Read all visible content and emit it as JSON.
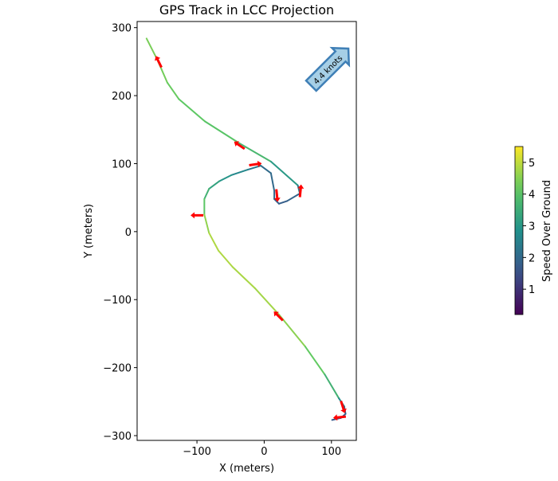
{
  "chart_data": {
    "type": "line",
    "title": "GPS Track in LCC Projection",
    "xlabel": "X (meters)",
    "ylabel": "Y (meters)",
    "xlim": [
      -189,
      137
    ],
    "ylim": [
      -307,
      309
    ],
    "xticks": [
      -100,
      0,
      100
    ],
    "xtick_labels": [
      "−100",
      "0",
      "100"
    ],
    "yticks": [
      -300,
      -200,
      -100,
      0,
      100,
      200,
      300
    ],
    "ytick_labels": [
      "−300",
      "−200",
      "−100",
      "0",
      "100",
      "200",
      "300"
    ],
    "grid": false,
    "track": [
      {
        "x": -175,
        "y": 284,
        "s": 4.4
      },
      {
        "x": -159,
        "y": 253,
        "s": 4.4
      },
      {
        "x": -144,
        "y": 219,
        "s": 4.3
      },
      {
        "x": -127,
        "y": 195,
        "s": 4.2
      },
      {
        "x": -88,
        "y": 162,
        "s": 4.1
      },
      {
        "x": -37,
        "y": 130,
        "s": 4.0
      },
      {
        "x": 10,
        "y": 103,
        "s": 3.5
      },
      {
        "x": 50,
        "y": 68,
        "s": 2.6
      },
      {
        "x": 53,
        "y": 56,
        "s": 2.0
      },
      {
        "x": 34,
        "y": 45,
        "s": 1.8
      },
      {
        "x": 22,
        "y": 41,
        "s": 1.8
      },
      {
        "x": 15,
        "y": 48,
        "s": 1.9
      },
      {
        "x": 15,
        "y": 60,
        "s": 2.0
      },
      {
        "x": 10,
        "y": 86,
        "s": 2.0
      },
      {
        "x": -5,
        "y": 97,
        "s": 2.1
      },
      {
        "x": -25,
        "y": 91,
        "s": 2.5
      },
      {
        "x": -49,
        "y": 83,
        "s": 2.8
      },
      {
        "x": -67,
        "y": 74,
        "s": 3.1
      },
      {
        "x": -82,
        "y": 63,
        "s": 3.4
      },
      {
        "x": -89,
        "y": 48,
        "s": 3.8
      },
      {
        "x": -89,
        "y": 25,
        "s": 4.4
      },
      {
        "x": -82,
        "y": -2,
        "s": 4.8
      },
      {
        "x": -68,
        "y": -28,
        "s": 4.9
      },
      {
        "x": -47,
        "y": -52,
        "s": 4.8
      },
      {
        "x": -14,
        "y": -83,
        "s": 4.8
      },
      {
        "x": 22,
        "y": -122,
        "s": 4.7
      },
      {
        "x": 61,
        "y": -169,
        "s": 4.4
      },
      {
        "x": 90,
        "y": -210,
        "s": 4.0
      },
      {
        "x": 111,
        "y": -245,
        "s": 3.2
      },
      {
        "x": 119,
        "y": -257,
        "s": 2.2
      },
      {
        "x": 121,
        "y": -268,
        "s": 1.8
      },
      {
        "x": 114,
        "y": -274,
        "s": 1.7
      },
      {
        "x": 101,
        "y": -277,
        "s": 1.7
      }
    ],
    "heading_arrows": [
      {
        "x": -157,
        "y": 250,
        "u": -0.45,
        "v": 0.9
      },
      {
        "x": -37,
        "y": 127,
        "u": -0.8,
        "v": 0.55
      },
      {
        "x": -13,
        "y": 99,
        "u": 1,
        "v": 0.15
      },
      {
        "x": 19,
        "y": 53,
        "u": 0.1,
        "v": -1
      },
      {
        "x": 54,
        "y": 60,
        "u": 0.1,
        "v": 1
      },
      {
        "x": -100,
        "y": 24,
        "u": -1,
        "v": 0
      },
      {
        "x": 21,
        "y": -124,
        "u": -0.7,
        "v": 0.7
      },
      {
        "x": 117,
        "y": -258,
        "u": 0.3,
        "v": -0.95
      },
      {
        "x": 112,
        "y": -273,
        "u": -1,
        "v": -0.1
      }
    ],
    "annotation": {
      "text": "4.4 knots",
      "angle_deg": 45,
      "box_color": "#a6cfe6",
      "edge_color": "#3f7fb6"
    },
    "colorbar": {
      "label": "Speed Over Ground",
      "range": [
        0.2,
        5.5
      ],
      "ticks": [
        1,
        2,
        3,
        4,
        5
      ],
      "colormap": "viridis"
    },
    "arrow_color": "#ff0000"
  }
}
